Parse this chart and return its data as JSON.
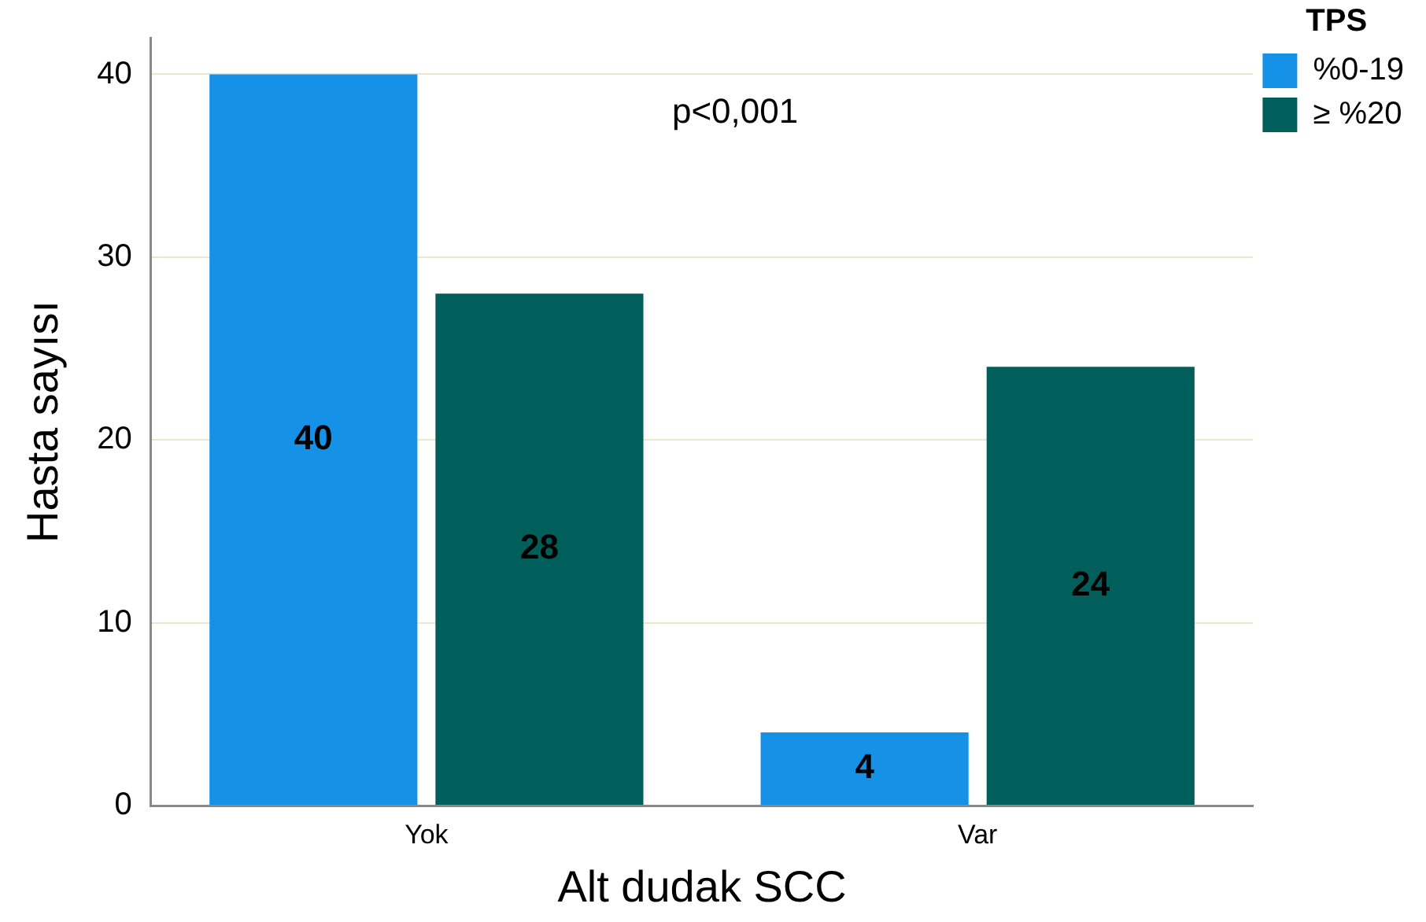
{
  "chart_data": {
    "type": "bar",
    "xlabel": "Alt dudak SCC",
    "ylabel": "Hasta sayısı",
    "legend_title": "TPS",
    "categories": [
      "Yok",
      "Var"
    ],
    "series": [
      {
        "name": "%0-19",
        "color": "#1591e8",
        "values": [
          40,
          4
        ]
      },
      {
        "name": "≥ %20",
        "color": "#005f5b",
        "values": [
          28,
          24
        ]
      }
    ],
    "ylim": [
      0,
      42
    ],
    "yticks": [
      0,
      10,
      20,
      30,
      40
    ],
    "grid": "y",
    "legend": "top right",
    "data_labels": true,
    "annotations": [
      "p<0,001"
    ]
  }
}
